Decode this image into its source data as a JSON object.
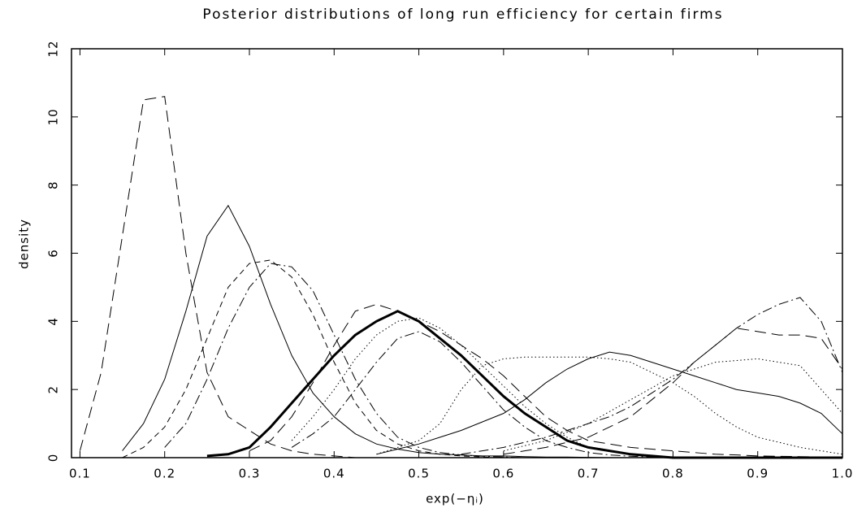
{
  "chart_data": {
    "type": "line",
    "title": "Posterior distributions of long run efficiency for certain firms",
    "x_label": "exp(−ηᵢ)",
    "y_label": "density",
    "xlim": [
      0.09,
      1.0
    ],
    "ylim": [
      0,
      12
    ],
    "xticks": [
      0.1,
      0.2,
      0.3,
      0.4,
      0.5,
      0.6,
      0.7,
      0.8,
      0.9,
      {
        "value": 1,
        "label": "1.0"
      }
    ],
    "yticks": [
      0,
      2,
      4,
      6,
      8,
      10,
      12
    ],
    "x": [
      0.1,
      0.125,
      0.15,
      0.175,
      0.2,
      0.225,
      0.25,
      0.275,
      0.3,
      0.325,
      0.35,
      0.375,
      0.4,
      0.425,
      0.45,
      0.475,
      0.5,
      0.525,
      0.55,
      0.575,
      0.6,
      0.625,
      0.65,
      0.675,
      0.7,
      0.725,
      0.75,
      0.775,
      0.8,
      0.825,
      0.85,
      0.875,
      0.9,
      0.925,
      0.95,
      0.975,
      1.0
    ],
    "series": [
      {
        "color": "#000",
        "style": "longdash",
        "width": 1,
        "values": [
          0.2,
          2.5,
          6.5,
          10.5,
          10.6,
          6,
          2.5,
          1.2,
          0.8,
          0.4,
          0.2,
          0.1,
          0.05,
          0,
          0,
          0,
          0,
          0,
          0,
          0,
          0,
          0,
          0,
          0,
          0,
          0,
          0,
          0,
          0,
          0,
          0,
          0,
          0,
          0,
          0,
          0,
          0
        ]
      },
      {
        "color": "#000",
        "style": "solid",
        "width": 1,
        "values": [
          null,
          null,
          0.2,
          1,
          2.3,
          4.3,
          6.5,
          7.4,
          6.2,
          4.5,
          3,
          1.9,
          1.2,
          0.7,
          0.4,
          0.25,
          0.15,
          0.1,
          0.08,
          0.05,
          0.05,
          0.03,
          0.02,
          0.02,
          0.01,
          0,
          0,
          0,
          0,
          0,
          0,
          0,
          0,
          0,
          0,
          0,
          0
        ]
      },
      {
        "color": "#000",
        "style": "dash",
        "width": 1,
        "values": [
          null,
          null,
          0,
          0.3,
          0.9,
          2,
          3.5,
          5,
          5.7,
          5.8,
          5.3,
          4.2,
          2.8,
          1.6,
          0.8,
          0.4,
          0.2,
          0.1,
          0.05,
          0.02,
          0,
          0,
          0,
          0,
          0,
          0,
          0,
          0,
          0,
          0,
          0,
          0,
          0,
          0,
          0,
          0,
          0
        ]
      },
      {
        "color": "#000",
        "style": "dashdot",
        "width": 1,
        "values": [
          null,
          null,
          null,
          null,
          0.3,
          1,
          2.3,
          3.8,
          5,
          5.7,
          5.6,
          4.9,
          3.6,
          2.3,
          1.3,
          0.6,
          0.3,
          0.15,
          0.08,
          0.04,
          0.02,
          0,
          0,
          0,
          0,
          0,
          0,
          0,
          0,
          0,
          0,
          0,
          0,
          0,
          0,
          0,
          0
        ]
      },
      {
        "color": "#000",
        "style": "solid",
        "width": 3,
        "values": [
          null,
          null,
          null,
          null,
          null,
          null,
          0.05,
          0.1,
          0.3,
          0.9,
          1.6,
          2.3,
          3,
          3.6,
          4,
          4.3,
          4,
          3.5,
          3,
          2.4,
          1.8,
          1.3,
          0.9,
          0.5,
          0.3,
          0.2,
          0.1,
          0.05,
          0,
          0,
          0,
          0,
          0,
          0,
          0,
          0,
          0
        ]
      },
      {
        "color": "#000",
        "style": "longdash",
        "width": 1,
        "values": [
          null,
          null,
          null,
          null,
          null,
          null,
          null,
          null,
          0.2,
          0.5,
          1.2,
          2.2,
          3.3,
          4.3,
          4.5,
          4.3,
          4,
          3.7,
          3.3,
          2.9,
          2.4,
          1.8,
          1.2,
          0.8,
          0.5,
          0.4,
          0.3,
          0.25,
          0.2,
          0.15,
          0.1,
          0.08,
          0.05,
          0.04,
          0.03,
          0.02,
          0.01
        ]
      },
      {
        "color": "#000",
        "style": "dot",
        "width": 1,
        "values": [
          null,
          null,
          null,
          null,
          null,
          null,
          null,
          null,
          null,
          null,
          0.5,
          1.2,
          2,
          2.9,
          3.6,
          4,
          4.1,
          3.8,
          3.3,
          2.7,
          2.1,
          1.5,
          1,
          0.6,
          0.3,
          0.2,
          0.1,
          0.05,
          0.02,
          0,
          0,
          0,
          0,
          0,
          0,
          0,
          0
        ]
      },
      {
        "color": "#000",
        "style": "dashdot",
        "width": 1,
        "values": [
          null,
          null,
          null,
          null,
          null,
          null,
          null,
          null,
          null,
          null,
          0.3,
          0.7,
          1.2,
          2,
          2.8,
          3.5,
          3.7,
          3.4,
          2.8,
          2.1,
          1.4,
          0.9,
          0.5,
          0.3,
          0.15,
          0.08,
          0.04,
          0.02,
          0,
          0,
          0,
          0,
          0,
          0,
          0,
          0,
          0
        ]
      },
      {
        "color": "#000",
        "style": "solid",
        "width": 1,
        "values": [
          null,
          null,
          null,
          null,
          null,
          null,
          null,
          null,
          null,
          null,
          null,
          null,
          null,
          null,
          0.1,
          0.25,
          0.4,
          0.6,
          0.8,
          1.05,
          1.3,
          1.7,
          2.2,
          2.6,
          2.9,
          3.1,
          3,
          2.8,
          2.6,
          2.4,
          2.2,
          2,
          1.9,
          1.8,
          1.6,
          1.3,
          0.7
        ]
      },
      {
        "color": "#000",
        "style": "dot",
        "width": 1,
        "values": [
          null,
          null,
          null,
          null,
          null,
          null,
          null,
          null,
          null,
          null,
          null,
          null,
          null,
          null,
          0.1,
          0.3,
          0.5,
          1,
          2,
          2.7,
          2.9,
          2.95,
          2.95,
          2.95,
          2.95,
          2.9,
          2.8,
          2.5,
          2.2,
          1.8,
          1.3,
          0.9,
          0.6,
          0.45,
          0.3,
          0.2,
          0.1
        ]
      },
      {
        "color": "#000",
        "style": "dashdot",
        "width": 1,
        "values": [
          null,
          null,
          null,
          null,
          null,
          null,
          null,
          null,
          null,
          null,
          null,
          null,
          null,
          null,
          null,
          null,
          null,
          null,
          0.1,
          0.2,
          0.3,
          0.45,
          0.6,
          0.8,
          1,
          1.2,
          1.5,
          1.9,
          2.3,
          2.8,
          3.3,
          3.8,
          4.2,
          4.5,
          4.7,
          4,
          2.5
        ]
      },
      {
        "color": "#000",
        "style": "longdash",
        "width": 1,
        "values": [
          null,
          null,
          null,
          null,
          null,
          null,
          null,
          null,
          null,
          null,
          null,
          null,
          null,
          null,
          null,
          null,
          null,
          null,
          null,
          null,
          0.1,
          0.2,
          0.3,
          0.45,
          0.6,
          0.9,
          1.2,
          1.7,
          2.2,
          2.8,
          3.3,
          3.8,
          3.7,
          3.6,
          3.6,
          3.5,
          2.6
        ]
      },
      {
        "color": "#000",
        "style": "dot",
        "width": 1,
        "values": [
          null,
          null,
          null,
          null,
          null,
          null,
          null,
          null,
          null,
          null,
          null,
          null,
          null,
          null,
          null,
          null,
          null,
          null,
          null,
          null,
          0.2,
          0.35,
          0.5,
          0.75,
          1,
          1.35,
          1.7,
          2.05,
          2.4,
          2.6,
          2.8,
          2.85,
          2.9,
          2.8,
          2.7,
          2,
          1.3
        ]
      }
    ]
  }
}
